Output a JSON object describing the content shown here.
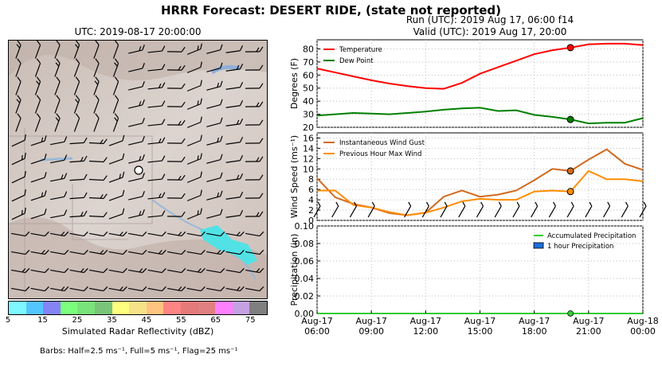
{
  "title": "HRRR Forecast: DESERT RIDE, (state not reported)",
  "run_text": "Run (UTC): 2019 Aug 17, 06:00 f14",
  "valid_text": "Valid (UTC): 2019 Aug 17, 20:00",
  "map": {
    "title": "UTC: 2019-08-17 20:00:00",
    "colorbar_label": "Simulated Radar Reflectivity (dBZ)",
    "colorbar_ticks": [
      "5",
      "15",
      "25",
      "35",
      "45",
      "55",
      "65",
      "75"
    ],
    "colorbar_colors": [
      "#7ff7ff",
      "#55c5ff",
      "#8484f7",
      "#7cff7c",
      "#7ae27a",
      "#7ac47a",
      "#ffff7f",
      "#f7e288",
      "#ffc47f",
      "#ff8484",
      "#e47a7a",
      "#e08080",
      "#ff80ff",
      "#c4a2e2",
      "#7f7f7f"
    ],
    "barb_note": "Barbs: Half=2.5 ms⁻¹, Full=5 ms⁻¹, Flag=25 ms⁻¹"
  },
  "chart_data": [
    {
      "type": "line",
      "ylabel": "Degrees (F)",
      "ylim": [
        20,
        87
      ],
      "yticks": [
        20,
        30,
        40,
        50,
        60,
        70,
        80
      ],
      "x_hours": [
        0,
        1,
        2,
        3,
        4,
        5,
        6,
        7,
        8,
        9,
        10,
        11,
        12,
        13,
        14,
        15,
        16,
        17,
        18
      ],
      "series": [
        {
          "name": "Temperature",
          "color": "#ff0000",
          "values": [
            65,
            62,
            59,
            56,
            53.5,
            51.5,
            50,
            49.5,
            54,
            61,
            66,
            71,
            76,
            79,
            81,
            83.5,
            84,
            84,
            83
          ]
        },
        {
          "name": "Dew Point",
          "color": "#008000",
          "values": [
            29,
            30,
            31,
            30.5,
            30,
            31,
            32,
            33.5,
            34.5,
            35,
            32.5,
            33,
            29.5,
            28,
            26,
            23,
            23.5,
            23.5,
            27
          ]
        }
      ],
      "marker_hour": 14,
      "legend": "top-left"
    },
    {
      "type": "line",
      "ylabel": "Wind Speed (ms⁻¹)",
      "ylim": [
        0,
        17
      ],
      "yticks": [
        0,
        2,
        4,
        6,
        8,
        10,
        12,
        14,
        16
      ],
      "x_hours": [
        0,
        1,
        2,
        3,
        4,
        5,
        6,
        7,
        8,
        9,
        10,
        11,
        12,
        13,
        14,
        15,
        16,
        17,
        18
      ],
      "series": [
        {
          "name": "Instantaneous Wind Gust",
          "color": "#d2691e",
          "values": [
            8.2,
            4.5,
            3.2,
            2.5,
            1.4,
            1,
            1.5,
            4.6,
            5.8,
            4.6,
            5,
            5.8,
            7.8,
            10,
            9.6,
            11.8,
            13.8,
            11,
            9.8
          ]
        },
        {
          "name": "Previous Hour Max Wind",
          "color": "#ff8c00",
          "values": [
            5.8,
            5.8,
            3,
            2.5,
            1.6,
            1,
            1.5,
            2.5,
            3.7,
            4.2,
            4,
            4,
            5.6,
            5.8,
            5.6,
            9.6,
            8,
            8,
            7.6
          ]
        }
      ],
      "marker_hour": 14,
      "legend": "top-left"
    },
    {
      "type": "bar",
      "ylabel": "Precipitation (in)",
      "ylim": [
        0,
        0.1
      ],
      "yticks": [
        "0.00",
        "0.02",
        "0.04",
        "0.06",
        "0.08",
        "0.10"
      ],
      "x_hours": [
        0,
        1,
        2,
        3,
        4,
        5,
        6,
        7,
        8,
        9,
        10,
        11,
        12,
        13,
        14,
        15,
        16,
        17,
        18
      ],
      "series": [
        {
          "name": "Accumulated Precipitation",
          "color": "#33cc33",
          "values": [
            0,
            0,
            0,
            0,
            0,
            0,
            0,
            0,
            0,
            0,
            0,
            0,
            0,
            0,
            0,
            0,
            0,
            0,
            0
          ]
        },
        {
          "name": "1 hour Precipitation",
          "color": "#1e6fd9",
          "values": [
            0,
            0,
            0,
            0,
            0,
            0,
            0,
            0,
            0,
            0,
            0,
            0,
            0,
            0,
            0,
            0,
            0,
            0,
            0
          ]
        }
      ],
      "marker_hour": 14,
      "legend": "top-right",
      "xtick_labels": [
        [
          "Aug-17",
          "06:00"
        ],
        [
          "Aug-17",
          "09:00"
        ],
        [
          "Aug-17",
          "12:00"
        ],
        [
          "Aug-17",
          "15:00"
        ],
        [
          "Aug-17",
          "18:00"
        ],
        [
          "Aug-17",
          "21:00"
        ],
        [
          "Aug-18",
          "00:00"
        ]
      ]
    }
  ]
}
